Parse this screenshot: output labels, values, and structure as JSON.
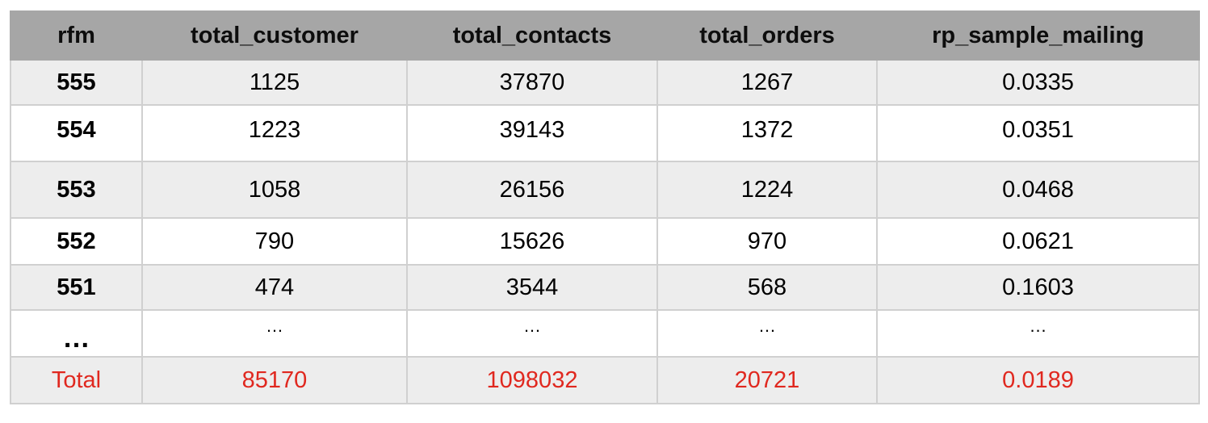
{
  "table": {
    "headers": [
      "rfm",
      "total_customer",
      "total_contacts",
      "total_orders",
      "rp_sample_mailing"
    ],
    "rows": [
      [
        "555",
        "1125",
        "37870",
        "1267",
        "0.0335"
      ],
      [
        "554",
        "1223",
        "39143",
        "1372",
        "0.0351"
      ],
      [
        "553",
        "1058",
        "26156",
        "1224",
        "0.0468"
      ],
      [
        "552",
        "790",
        "15626",
        "970",
        "0.0621"
      ],
      [
        "551",
        "474",
        "3544",
        "568",
        "0.1603"
      ],
      [
        "…",
        "…",
        "…",
        "…",
        "…"
      ]
    ],
    "total_row": [
      "Total",
      "85170",
      "1098032",
      "20721",
      "0.0189"
    ]
  },
  "colors": {
    "header_bg": "#a6a6a6",
    "shaded_row": "#ededed",
    "total_text": "#e0281f"
  }
}
